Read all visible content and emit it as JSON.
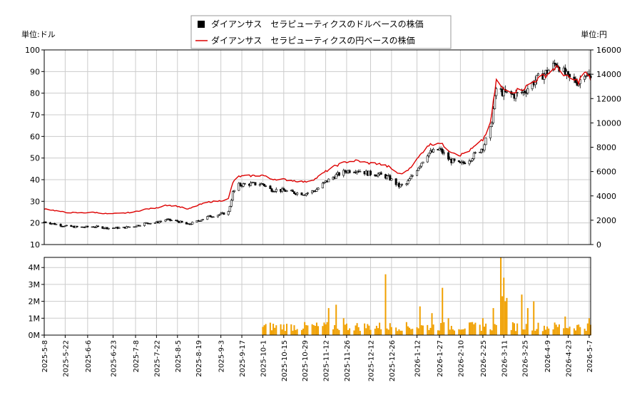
{
  "chart_data": [
    {
      "type": "candlestick+line",
      "legend": {
        "placement": "top-center",
        "entries": [
          {
            "label": "ダイアンサス　セラピューティクスのドルベースの株価",
            "marker": "square",
            "color": "#000000"
          },
          {
            "label": "ダイアンサス　セラピューティクスの円ベースの株価",
            "marker": "line",
            "color": "#dd0000"
          }
        ]
      },
      "ylabel_left": "単位:ドル",
      "ylabel_right": "単位:円",
      "ylim_left": [
        10,
        100
      ],
      "ylim_right": [
        0,
        16000
      ],
      "yticks_left": [
        "10",
        "20",
        "30",
        "40",
        "50",
        "60",
        "70",
        "80",
        "90",
        "100"
      ],
      "yticks_right": [
        "0",
        "2000",
        "4000",
        "6000",
        "8000",
        "10000",
        "12000",
        "14000",
        "16000"
      ],
      "grid": true,
      "usd_anchors": [
        [
          "2025-05-08",
          20.5
        ],
        [
          "2025-05-15",
          19.5
        ],
        [
          "2025-05-22",
          18.5
        ],
        [
          "2025-06-01",
          18.0
        ],
        [
          "2025-06-10",
          18.3
        ],
        [
          "2025-06-20",
          17.6
        ],
        [
          "2025-06-30",
          17.8
        ],
        [
          "2025-07-08",
          18.6
        ],
        [
          "2025-07-14",
          19.8
        ],
        [
          "2025-07-22",
          20.2
        ],
        [
          "2025-07-28",
          21.5
        ],
        [
          "2025-08-05",
          20.8
        ],
        [
          "2025-08-12",
          19.2
        ],
        [
          "2025-08-19",
          21.0
        ],
        [
          "2025-08-26",
          23.0
        ],
        [
          "2025-09-03",
          24.0
        ],
        [
          "2025-09-08",
          25.0
        ],
        [
          "2025-09-11",
          34.0
        ],
        [
          "2025-09-15",
          37.5
        ],
        [
          "2025-09-22",
          38.0
        ],
        [
          "2025-10-01",
          38.0
        ],
        [
          "2025-10-06",
          35.5
        ],
        [
          "2025-10-15",
          35.0
        ],
        [
          "2025-10-22",
          34.0
        ],
        [
          "2025-10-29",
          33.5
        ],
        [
          "2025-11-05",
          35.0
        ],
        [
          "2025-11-12",
          39.0
        ],
        [
          "2025-11-19",
          42.0
        ],
        [
          "2025-11-26",
          44.0
        ],
        [
          "2025-12-03",
          44.5
        ],
        [
          "2025-12-10",
          43.0
        ],
        [
          "2025-12-17",
          42.5
        ],
        [
          "2025-12-24",
          41.0
        ],
        [
          "2025-12-31",
          37.0
        ],
        [
          "2026-01-05",
          38.0
        ],
        [
          "2026-01-12",
          45.0
        ],
        [
          "2026-01-19",
          52.0
        ],
        [
          "2026-01-27",
          54.0
        ],
        [
          "2026-02-03",
          49.0
        ],
        [
          "2026-02-10",
          47.0
        ],
        [
          "2026-02-17",
          50.0
        ],
        [
          "2026-02-25",
          55.0
        ],
        [
          "2026-03-02",
          63.0
        ],
        [
          "2026-03-06",
          82.0
        ],
        [
          "2026-03-11",
          80.0
        ],
        [
          "2026-03-18",
          79.0
        ],
        [
          "2026-03-25",
          81.0
        ],
        [
          "2026-04-01",
          86.0
        ],
        [
          "2026-04-09",
          90.0
        ],
        [
          "2026-04-15",
          94.0
        ],
        [
          "2026-04-23",
          87.0
        ],
        [
          "2026-04-30",
          85.0
        ],
        [
          "2026-05-04",
          90.0
        ],
        [
          "2026-05-08",
          86.5
        ]
      ],
      "jpy_anchors": [
        [
          "2025-05-08",
          2950
        ],
        [
          "2025-05-15",
          2800
        ],
        [
          "2025-05-22",
          2650
        ],
        [
          "2025-06-01",
          2600
        ],
        [
          "2025-06-10",
          2650
        ],
        [
          "2025-06-20",
          2520
        ],
        [
          "2025-06-30",
          2580
        ],
        [
          "2025-07-08",
          2700
        ],
        [
          "2025-07-14",
          2900
        ],
        [
          "2025-07-22",
          3000
        ],
        [
          "2025-07-28",
          3250
        ],
        [
          "2025-08-05",
          3150
        ],
        [
          "2025-08-12",
          2900
        ],
        [
          "2025-08-19",
          3250
        ],
        [
          "2025-08-26",
          3500
        ],
        [
          "2025-09-03",
          3600
        ],
        [
          "2025-09-08",
          3750
        ],
        [
          "2025-09-11",
          5100
        ],
        [
          "2025-09-15",
          5600
        ],
        [
          "2025-09-22",
          5650
        ],
        [
          "2025-10-01",
          5700
        ],
        [
          "2025-10-06",
          5400
        ],
        [
          "2025-10-15",
          5350
        ],
        [
          "2025-10-22",
          5250
        ],
        [
          "2025-10-29",
          5150
        ],
        [
          "2025-11-05",
          5400
        ],
        [
          "2025-11-12",
          6000
        ],
        [
          "2025-11-19",
          6500
        ],
        [
          "2025-11-26",
          6800
        ],
        [
          "2025-12-03",
          6900
        ],
        [
          "2025-12-10",
          6700
        ],
        [
          "2025-12-17",
          6650
        ],
        [
          "2025-12-24",
          6400
        ],
        [
          "2025-12-31",
          5800
        ],
        [
          "2026-01-05",
          6000
        ],
        [
          "2026-01-12",
          7000
        ],
        [
          "2026-01-19",
          8150
        ],
        [
          "2026-01-27",
          8400
        ],
        [
          "2026-02-03",
          7700
        ],
        [
          "2026-02-10",
          7350
        ],
        [
          "2026-02-17",
          7800
        ],
        [
          "2026-02-25",
          8600
        ],
        [
          "2026-03-02",
          9900
        ],
        [
          "2026-03-06",
          13500
        ],
        [
          "2026-03-11",
          12700
        ],
        [
          "2026-03-18",
          12600
        ],
        [
          "2026-03-25",
          12900
        ],
        [
          "2026-04-01",
          13500
        ],
        [
          "2026-04-09",
          14000
        ],
        [
          "2026-04-15",
          14600
        ],
        [
          "2026-04-23",
          13700
        ],
        [
          "2026-04-30",
          13400
        ],
        [
          "2026-05-04",
          14200
        ],
        [
          "2026-05-08",
          13600
        ]
      ]
    },
    {
      "type": "bar",
      "series_name": "volume",
      "color": "#f0a000",
      "ylim": [
        0,
        4600000
      ],
      "yticks": [
        "0M",
        "1M",
        "2M",
        "3M",
        "4M"
      ],
      "volume_start": "2025-10-01",
      "volume_base": 600000,
      "volume_spikes": [
        [
          "2025-11-14",
          1600000
        ],
        [
          "2025-11-19",
          1800000
        ],
        [
          "2025-11-24",
          1000000
        ],
        [
          "2025-12-22",
          3600000
        ],
        [
          "2026-01-14",
          1700000
        ],
        [
          "2026-01-22",
          1300000
        ],
        [
          "2026-01-29",
          2800000
        ],
        [
          "2026-02-02",
          1000000
        ],
        [
          "2026-02-25",
          1000000
        ],
        [
          "2026-03-04",
          1600000
        ],
        [
          "2026-03-09",
          4600000
        ],
        [
          "2026-03-10",
          2300000
        ],
        [
          "2026-03-11",
          3400000
        ],
        [
          "2026-03-12",
          2000000
        ],
        [
          "2026-03-13",
          2200000
        ],
        [
          "2026-03-23",
          2400000
        ],
        [
          "2026-03-31",
          2000000
        ],
        [
          "2026-03-27",
          1600000
        ],
        [
          "2026-04-21",
          1100000
        ],
        [
          "2026-05-07",
          1000000
        ]
      ],
      "x_ticks": [
        "2025-5-8",
        "2025-5-22",
        "2025-6-6",
        "2025-6-23",
        "2025-7-8",
        "2025-7-22",
        "2025-8-5",
        "2025-8-19",
        "2025-9-3",
        "2025-9-17",
        "2025-10-1",
        "2025-10-15",
        "2025-10-29",
        "2025-11-12",
        "2025-11-26",
        "2025-12-12",
        "2025-12-26",
        "2026-1-12",
        "2026-1-27",
        "2026-2-10",
        "2026-2-25",
        "2026-3-11",
        "2026-3-25",
        "2026-4-9",
        "2026-4-23",
        "2026-5-7"
      ]
    }
  ]
}
